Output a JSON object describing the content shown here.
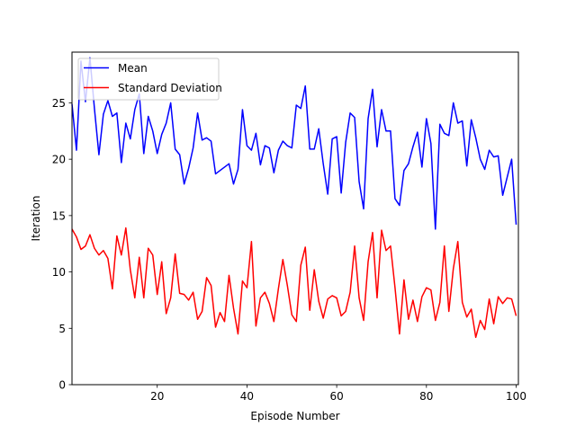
{
  "chart_data": {
    "type": "line",
    "title": "",
    "xlabel": "Episode Number",
    "ylabel": "Iteration",
    "xlim": [
      1,
      100.5
    ],
    "ylim": [
      0,
      29.5
    ],
    "xticks": [
      20,
      40,
      60,
      80,
      100
    ],
    "yticks": [
      0,
      5,
      10,
      15,
      20,
      25
    ],
    "grid": false,
    "legend_position": "upper-left",
    "x": [
      1,
      2,
      3,
      4,
      5,
      6,
      7,
      8,
      9,
      10,
      11,
      12,
      13,
      14,
      15,
      16,
      17,
      18,
      19,
      20,
      21,
      22,
      23,
      24,
      25,
      26,
      27,
      28,
      29,
      30,
      31,
      32,
      33,
      34,
      35,
      36,
      37,
      38,
      39,
      40,
      41,
      42,
      43,
      44,
      45,
      46,
      47,
      48,
      49,
      50,
      51,
      52,
      53,
      54,
      55,
      56,
      57,
      58,
      59,
      60,
      61,
      62,
      63,
      64,
      65,
      66,
      67,
      68,
      69,
      70,
      71,
      72,
      73,
      74,
      75,
      76,
      77,
      78,
      79,
      80,
      81,
      82,
      83,
      84,
      85,
      86,
      87,
      88,
      89,
      90,
      91,
      92,
      93,
      94,
      95,
      96,
      97,
      98,
      99,
      100
    ],
    "series": [
      {
        "name": "Mean",
        "color": "#0000ff",
        "values": [
          24.9,
          20.8,
          28.7,
          25.1,
          29.0,
          24.5,
          20.4,
          24.0,
          25.2,
          23.8,
          24.1,
          19.7,
          23.2,
          21.8,
          24.4,
          25.8,
          20.5,
          23.8,
          22.5,
          20.5,
          22.2,
          23.2,
          25.0,
          20.9,
          20.4,
          17.8,
          19.2,
          21.0,
          24.1,
          21.7,
          21.9,
          21.6,
          18.7,
          19.0,
          19.3,
          19.6,
          17.8,
          19.1,
          24.4,
          21.2,
          20.8,
          22.3,
          19.5,
          21.2,
          21.0,
          18.8,
          20.8,
          21.6,
          21.2,
          21.0,
          24.8,
          24.5,
          26.5,
          20.9,
          20.9,
          22.7,
          19.6,
          16.9,
          21.8,
          22.0,
          17.0,
          21.5,
          24.1,
          23.7,
          18.0,
          15.6,
          23.6,
          26.2,
          21.1,
          24.4,
          22.5,
          22.5,
          16.5,
          15.9,
          19.0,
          19.6,
          21.1,
          22.4,
          19.3,
          23.6,
          21.4,
          13.8,
          23.1,
          22.3,
          22.1,
          25.0,
          23.2,
          23.4,
          19.4,
          23.5,
          21.9,
          20.0,
          19.1,
          20.8,
          20.2,
          20.3,
          16.8,
          18.4,
          20.0,
          14.2
        ]
      },
      {
        "name": "Standard Deviation",
        "color": "#ff0000",
        "values": [
          13.8,
          13.1,
          12.0,
          12.3,
          13.3,
          12.1,
          11.5,
          11.9,
          11.2,
          8.5,
          13.2,
          11.5,
          13.9,
          10.2,
          7.7,
          11.3,
          7.7,
          12.1,
          11.5,
          8.0,
          10.9,
          6.3,
          7.7,
          11.6,
          8.1,
          8.0,
          7.5,
          8.2,
          5.8,
          6.5,
          9.5,
          8.8,
          5.1,
          6.4,
          5.6,
          9.7,
          6.8,
          4.5,
          9.2,
          8.6,
          12.7,
          5.2,
          7.7,
          8.2,
          7.2,
          5.6,
          8.5,
          11.1,
          8.8,
          6.2,
          5.6,
          10.6,
          12.2,
          6.6,
          10.2,
          7.4,
          5.9,
          7.6,
          7.9,
          7.7,
          6.1,
          6.5,
          8.2,
          12.3,
          7.7,
          5.7,
          10.9,
          13.5,
          7.7,
          13.7,
          11.9,
          12.3,
          8.6,
          4.5,
          9.3,
          5.8,
          7.5,
          5.6,
          7.8,
          8.6,
          8.4,
          5.7,
          7.3,
          12.3,
          6.5,
          10.3,
          12.7,
          7.3,
          6.0,
          6.7,
          4.2,
          5.7,
          4.9,
          7.6,
          5.4,
          7.8,
          7.2,
          7.7,
          7.6,
          6.1
        ]
      }
    ]
  }
}
